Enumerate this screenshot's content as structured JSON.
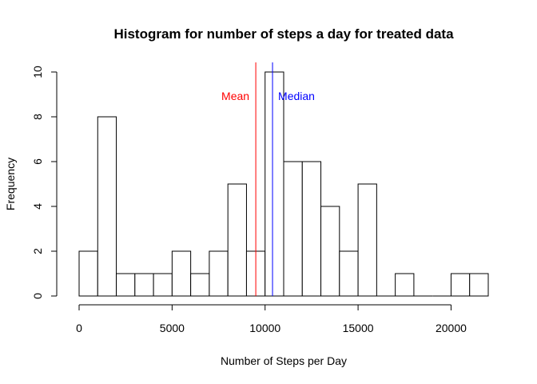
{
  "chart_data": {
    "type": "bar",
    "title": "Histogram for number of steps a day for treated data",
    "xlabel": "Number of Steps per Day",
    "ylabel": "Frequency",
    "xlim": [
      0,
      22000
    ],
    "ylim": [
      0,
      10
    ],
    "x_ticks": [
      0,
      5000,
      10000,
      15000,
      20000
    ],
    "y_ticks": [
      0,
      2,
      4,
      6,
      8,
      10
    ],
    "bin_width": 1000,
    "bins": [
      {
        "start": 0,
        "end": 1000,
        "count": 2
      },
      {
        "start": 1000,
        "end": 2000,
        "count": 8
      },
      {
        "start": 2000,
        "end": 3000,
        "count": 1
      },
      {
        "start": 3000,
        "end": 4000,
        "count": 1
      },
      {
        "start": 4000,
        "end": 5000,
        "count": 1
      },
      {
        "start": 5000,
        "end": 6000,
        "count": 2
      },
      {
        "start": 6000,
        "end": 7000,
        "count": 1
      },
      {
        "start": 7000,
        "end": 8000,
        "count": 2
      },
      {
        "start": 8000,
        "end": 9000,
        "count": 5
      },
      {
        "start": 9000,
        "end": 10000,
        "count": 2
      },
      {
        "start": 10000,
        "end": 11000,
        "count": 10
      },
      {
        "start": 11000,
        "end": 12000,
        "count": 6
      },
      {
        "start": 12000,
        "end": 13000,
        "count": 6
      },
      {
        "start": 13000,
        "end": 14000,
        "count": 4
      },
      {
        "start": 14000,
        "end": 15000,
        "count": 2
      },
      {
        "start": 15000,
        "end": 16000,
        "count": 5
      },
      {
        "start": 16000,
        "end": 17000,
        "count": 0
      },
      {
        "start": 17000,
        "end": 18000,
        "count": 1
      },
      {
        "start": 18000,
        "end": 19000,
        "count": 0
      },
      {
        "start": 19000,
        "end": 20000,
        "count": 0
      },
      {
        "start": 20000,
        "end": 21000,
        "count": 1
      },
      {
        "start": 21000,
        "end": 22000,
        "count": 1
      }
    ],
    "reference_lines": [
      {
        "label": "Mean",
        "value": 9500,
        "color": "#ff0000"
      },
      {
        "label": "Median",
        "value": 10400,
        "color": "#0000ff"
      }
    ],
    "grid": false,
    "legend": "none"
  }
}
